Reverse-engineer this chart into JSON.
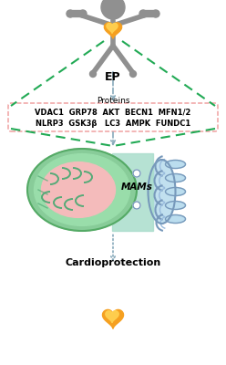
{
  "figure_width": 2.48,
  "figure_height": 4.0,
  "dpi": 100,
  "background_color": "#ffffff",
  "person_color": "#909090",
  "green_dashed_color": "#22AA55",
  "blue_arrow_color": "#88AABB",
  "pink_box_border": "#EE9999",
  "proteins_row1": "VDAC1  GRP78  AKT  BECN1  MFN1/2",
  "proteins_row2": "NLRP3  GSK3β   LC3  AMPK  FUNDC1",
  "ep_label": "EP",
  "proteins_label": "Proteins",
  "mams_label": "MAMs",
  "cardioprotection_label": "Cardioprotection",
  "mito_outer_green": "#88CC99",
  "mito_inner_green": "#99DDAA",
  "mito_pink": "#F4BBBB",
  "mito_crista_green": "#55AA77",
  "er_blue_light": "#BBDDEE",
  "er_blue_mid": "#99BBDD",
  "er_border_blue": "#7799BB",
  "junction_teal": "#AADDCC",
  "heart_orange": "#F5A020",
  "heart_yellow": "#FFD050"
}
